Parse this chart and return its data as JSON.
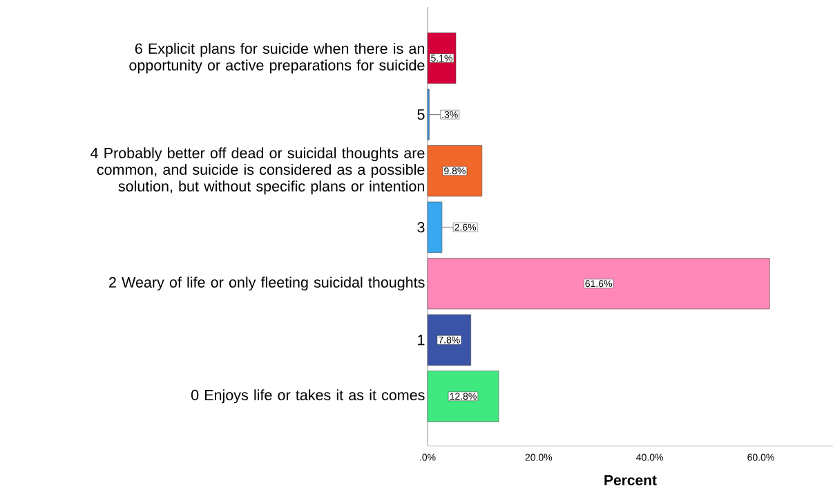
{
  "chart_data": {
    "type": "bar",
    "orientation": "horizontal",
    "xlabel": "Percent",
    "categories": [
      "6 Explicit plans for suicide when there is an opportunity or active preparations for suicide",
      "5",
      "4 Probably better off dead or suicidal thoughts are common, and suicide is considered as a possible solution, but without specific plans or intention",
      "3",
      "2 Weary of life or only fleeting suicidal thoughts",
      "1",
      "0 Enjoys life or takes it as it comes"
    ],
    "values": [
      5.1,
      0.3,
      9.8,
      2.6,
      61.6,
      7.8,
      12.8
    ],
    "value_labels": [
      "5.1%",
      ".3%",
      "9.8%",
      "2.6%",
      "61.6%",
      "7.8%",
      "12.8%"
    ],
    "colors": [
      "#d5003a",
      "#3a90e0",
      "#f0682a",
      "#3aa8f0",
      "#ff88b8",
      "#3a55a8",
      "#40e880"
    ],
    "xlim": [
      0,
      73
    ],
    "xticks": [
      {
        "value": 0,
        "label": ".0%"
      },
      {
        "value": 20,
        "label": "20.0%"
      },
      {
        "value": 40,
        "label": "40.0%"
      },
      {
        "value": 60,
        "label": "60.0%"
      }
    ],
    "grid": false
  }
}
